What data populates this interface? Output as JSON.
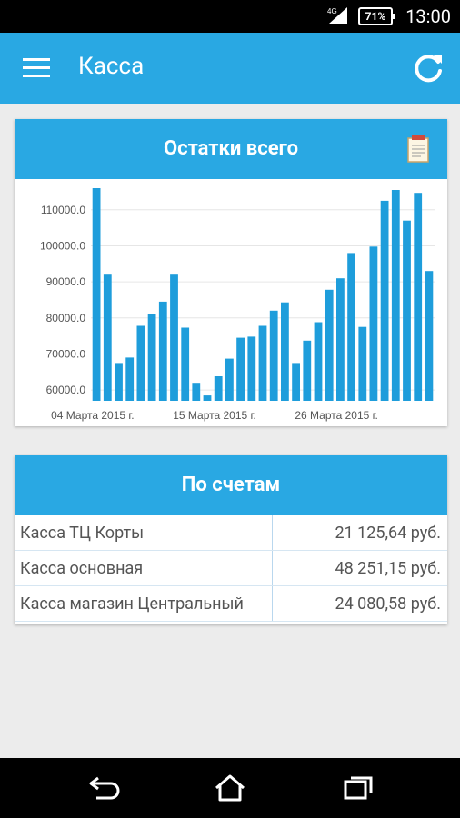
{
  "status": {
    "battery": "71%",
    "time": "13:00"
  },
  "appbar": {
    "title": "Касса"
  },
  "balance_card": {
    "title": "Остатки всего"
  },
  "accounts_card": {
    "title": "По счетам",
    "rows": [
      {
        "name": "Касса ТЦ Корты",
        "amount": "21 125,64 руб."
      },
      {
        "name": "Касса основная",
        "amount": "48 251,15 руб."
      },
      {
        "name": "Касса магазин Центральный",
        "amount": "24 080,58 руб."
      }
    ]
  },
  "colors": {
    "accent": "#29a8e3",
    "bar": "#1e9ddb",
    "background": "#ececec"
  },
  "icons": {
    "menu": "menu-icon",
    "refresh": "refresh-icon",
    "report": "document-icon",
    "back": "back-icon",
    "home": "home-icon",
    "recents": "recents-icon"
  },
  "chart_data": {
    "type": "bar",
    "x_tick_labels": [
      "04 Марта 2015 г.",
      "15 Марта 2015 г.",
      "26 Марта 2015 г."
    ],
    "y_tick_labels": [
      "60000.0",
      "70000.0",
      "80000.0",
      "90000.0",
      "100000.0",
      "110000.0"
    ],
    "ylim": [
      57000,
      116000
    ],
    "grid": true,
    "values": [
      116000,
      92000,
      67500,
      69000,
      77800,
      81000,
      84500,
      92000,
      77300,
      62000,
      58500,
      63800,
      68700,
      74500,
      74800,
      77800,
      82000,
      84300,
      67500,
      73700,
      78800,
      87800,
      91000,
      98000,
      77500,
      99800,
      112500,
      115500,
      107000,
      114700,
      93000
    ]
  }
}
